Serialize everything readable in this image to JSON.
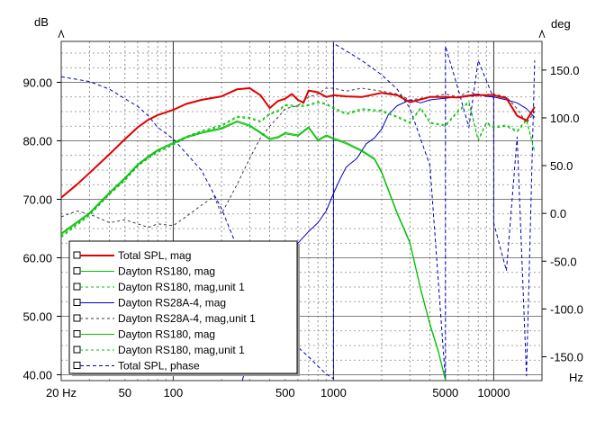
{
  "chart_data": {
    "type": "line",
    "x_scale": "log",
    "left_unit": "dB",
    "right_unit": "deg",
    "x_unit": "Hz",
    "xlim": [
      20,
      20000
    ],
    "ylim_left": [
      39,
      97
    ],
    "ylim_right": [
      -175,
      180
    ],
    "grid": true,
    "legend_position": "bottom-left",
    "x_tick_labels": [
      {
        "value": 20,
        "label": "20 Hz"
      },
      {
        "value": 50,
        "label": "50"
      },
      {
        "value": 100,
        "label": "100"
      },
      {
        "value": 500,
        "label": "500"
      },
      {
        "value": 1000,
        "label": "1000"
      },
      {
        "value": 5000,
        "label": "5000"
      },
      {
        "value": 10000,
        "label": "10000"
      }
    ],
    "y_left_ticks": [
      {
        "value": 40,
        "label": "40.00"
      },
      {
        "value": 50,
        "label": "50.00"
      },
      {
        "value": 60,
        "label": "60.00"
      },
      {
        "value": 70,
        "label": "70.00"
      },
      {
        "value": 80,
        "label": "80.00"
      },
      {
        "value": 90,
        "label": "90.00"
      }
    ],
    "y_right_ticks": [
      {
        "value": 150,
        "label": "150.0"
      },
      {
        "value": 100,
        "label": "100.0"
      },
      {
        "value": 50,
        "label": "50.0"
      },
      {
        "value": 0,
        "label": "0.0"
      },
      {
        "value": -50,
        "label": "-50.0"
      },
      {
        "value": -100,
        "label": "-100.0"
      },
      {
        "value": -150,
        "label": "-150.0"
      }
    ],
    "series": [
      {
        "name": "Total SPL, mag",
        "color": "#e00000",
        "dash": "solid",
        "width": 2,
        "axis": "left",
        "x": [
          20,
          25,
          30,
          40,
          50,
          60,
          70,
          80,
          100,
          120,
          150,
          200,
          250,
          300,
          350,
          400,
          450,
          500,
          550,
          600,
          650,
          700,
          800,
          900,
          1000,
          1200,
          1500,
          2000,
          2500,
          3000,
          4000,
          5000,
          6000,
          7000,
          8000,
          10000,
          12000,
          14000,
          16000,
          18000
        ],
        "y": [
          70.3,
          72.5,
          74.5,
          77.7,
          80.3,
          82.3,
          83.6,
          84.4,
          85.3,
          86.3,
          87.0,
          87.6,
          88.8,
          89.0,
          87.8,
          85.6,
          86.8,
          87.2,
          88.0,
          87.0,
          86.5,
          88.6,
          88.3,
          87.5,
          87.8,
          87.6,
          87.5,
          88.2,
          87.8,
          86.6,
          87.5,
          87.5,
          87.4,
          87.7,
          87.8,
          87.8,
          87.3,
          84.3,
          83.5,
          85.8
        ]
      },
      {
        "name": "Dayton RS180, mag",
        "color": "#00c000",
        "dash": "solid",
        "width": 1,
        "axis": "left",
        "x": [
          20,
          30,
          40,
          50,
          60,
          70,
          80,
          100,
          120,
          150,
          200,
          250,
          300,
          350,
          400,
          450,
          500,
          600,
          700,
          800,
          900,
          1000,
          1200,
          1500,
          1800,
          2000,
          2500,
          3000,
          3500,
          4000,
          4500,
          5000
        ],
        "y": [
          64.0,
          67.5,
          71.0,
          73.5,
          75.8,
          77.2,
          78.3,
          79.5,
          80.5,
          81.3,
          82.0,
          83.2,
          82.5,
          81.3,
          80.2,
          80.5,
          81.2,
          80.8,
          82.2,
          80.0,
          80.8,
          80.3,
          79.5,
          78.2,
          76.8,
          74.5,
          67.5,
          62.5,
          54.5,
          48.5,
          44.0,
          39.0
        ]
      },
      {
        "name": "Dayton RS180, mag,unit 1",
        "color": "#00c000",
        "dash": "3,3",
        "width": 1,
        "axis": "left",
        "x": [
          20,
          30,
          40,
          50,
          60,
          70,
          80,
          100,
          120,
          150,
          200,
          250,
          300,
          350,
          400,
          450,
          500,
          600,
          700,
          800,
          900,
          1000,
          1200,
          1500,
          2000,
          2500,
          3000,
          3500,
          4000,
          5000,
          6000,
          7000,
          8000,
          9000,
          10000,
          12000,
          14000,
          16000,
          18000
        ],
        "y": [
          63.5,
          67.2,
          70.8,
          73.2,
          75.6,
          77.0,
          78.0,
          79.3,
          80.5,
          81.5,
          82.5,
          84.0,
          83.8,
          83.2,
          84.5,
          85.0,
          86.0,
          85.8,
          86.0,
          86.5,
          86.2,
          85.5,
          84.5,
          85.3,
          85.0,
          84.0,
          83.0,
          85.5,
          83.0,
          82.5,
          85.0,
          86.5,
          80.0,
          83.0,
          82.2,
          82.5,
          81.5,
          83.5,
          78.0
        ]
      },
      {
        "name": "Dayton RS28A-4, mag",
        "color": "#0000c0",
        "dash": "solid",
        "width": 1,
        "axis": "left",
        "x": [
          270,
          300,
          350,
          400,
          450,
          500,
          550,
          600,
          700,
          800,
          900,
          1000,
          1100,
          1200,
          1400,
          1600,
          1800,
          2000,
          2200,
          2500,
          3000,
          3500,
          4000,
          5000,
          6000,
          7000,
          8000,
          9000,
          10000,
          12000,
          14000,
          16000,
          18000
        ],
        "y": [
          39.0,
          44.0,
          48.0,
          51.0,
          54.0,
          57.5,
          60.0,
          62.5,
          64.5,
          66.0,
          68.0,
          71.0,
          73.5,
          75.5,
          77.0,
          79.5,
          80.5,
          82.0,
          84.5,
          86.0,
          87.0,
          86.5,
          87.0,
          87.3,
          87.5,
          87.8,
          88.0,
          87.6,
          87.5,
          87.0,
          86.5,
          85.5,
          84.0
        ]
      },
      {
        "name": "Dayton RS28A-4, mag,unit 1",
        "color": "#3a3a3a",
        "dash": "3,3",
        "width": 1,
        "axis": "left",
        "x": [
          20,
          25,
          30,
          40,
          50,
          60,
          70,
          80,
          100,
          120,
          150,
          180,
          200,
          250,
          300,
          350,
          400,
          450,
          500,
          600,
          700,
          800,
          900,
          1000,
          1200,
          1500,
          2000,
          2500,
          3000,
          4000,
          5000,
          6000,
          7000,
          8000,
          10000,
          12000,
          14000,
          16000,
          18000
        ],
        "y": [
          67.0,
          68.0,
          67.5,
          66.0,
          66.5,
          65.8,
          65.2,
          65.8,
          65.5,
          67.0,
          69.0,
          70.5,
          67.5,
          72.5,
          77.0,
          80.5,
          82.5,
          84.0,
          85.5,
          86.0,
          87.5,
          88.0,
          89.0,
          89.0,
          88.5,
          89.0,
          88.5,
          88.0,
          87.0,
          87.5,
          88.0,
          87.5,
          88.5,
          87.8,
          88.0,
          87.5,
          85.5,
          83.0,
          85.0
        ]
      },
      {
        "name": "Dayton RS180, mag",
        "color": "#00c000",
        "dash": "solid",
        "width": 1,
        "axis": "left",
        "x": [
          20,
          30,
          40,
          50,
          60,
          70,
          80,
          100,
          120,
          150,
          200,
          250,
          300,
          350,
          400,
          450,
          500,
          600,
          700,
          800,
          900,
          1000,
          1200,
          1500,
          1800,
          2000,
          2500,
          3000,
          3500,
          4000,
          4500,
          5000
        ],
        "y": [
          64.2,
          67.7,
          71.2,
          73.7,
          76.0,
          77.4,
          78.5,
          79.7,
          80.7,
          81.5,
          82.2,
          83.4,
          82.7,
          81.5,
          80.4,
          80.7,
          81.4,
          81.0,
          82.4,
          80.2,
          81.0,
          80.5,
          79.7,
          78.4,
          77.0,
          74.7,
          67.7,
          62.7,
          54.7,
          48.7,
          44.2,
          39.2
        ]
      },
      {
        "name": "Dayton RS180, mag,unit 1",
        "color": "#00c000",
        "dash": "3,3",
        "width": 1,
        "axis": "left",
        "x": [
          20,
          30,
          40,
          50,
          60,
          70,
          80,
          100,
          120,
          150,
          200,
          250,
          300,
          350,
          400,
          450,
          500,
          600,
          700,
          800,
          900,
          1000,
          1200,
          1500,
          2000,
          2500,
          3000,
          3500,
          4000,
          5000,
          6000,
          7000,
          8000,
          9000,
          10000,
          12000,
          14000,
          16000,
          18000
        ],
        "y": [
          63.7,
          67.4,
          71.0,
          73.4,
          75.8,
          77.2,
          78.2,
          79.5,
          80.7,
          81.7,
          82.7,
          84.2,
          84.0,
          83.4,
          84.7,
          85.2,
          86.2,
          86.0,
          86.2,
          86.7,
          86.4,
          85.7,
          84.7,
          85.5,
          85.2,
          84.2,
          83.2,
          85.7,
          83.2,
          82.7,
          85.2,
          86.7,
          80.2,
          83.2,
          82.4,
          82.7,
          81.7,
          83.7,
          78.2
        ]
      },
      {
        "name": "Total SPL, phase",
        "color": "#0000c0",
        "dash": "4,3",
        "width": 1,
        "axis": "right",
        "x": [
          20,
          30,
          40,
          50,
          60,
          70,
          80,
          100,
          150,
          200,
          250,
          300,
          400,
          500,
          600,
          700,
          800,
          900,
          1000,
          1000.1,
          1200,
          1500,
          2000,
          2500,
          3000,
          4000,
          5000,
          5000.1,
          6000,
          7000,
          8000,
          10000,
          10000.1,
          12000,
          14000,
          16000,
          18000
        ],
        "y": [
          143,
          138,
          130,
          120,
          112,
          102,
          90,
          78,
          45,
          5,
          -35,
          -65,
          -105,
          -125,
          -140,
          -150,
          -160,
          -168,
          -173,
          178,
          170,
          160,
          145,
          130,
          110,
          50,
          -175,
          175,
          130,
          90,
          160,
          120,
          -10,
          -60,
          80,
          -170,
          160
        ]
      }
    ],
    "legend": [
      {
        "label": "Total SPL, mag",
        "color": "#e00000",
        "dash": "solid",
        "width": 2
      },
      {
        "label": "Dayton RS180, mag",
        "color": "#00c000",
        "dash": "solid",
        "width": 1
      },
      {
        "label": "Dayton RS180, mag,unit 1",
        "color": "#00c000",
        "dash": "3,3",
        "width": 1
      },
      {
        "label": "Dayton RS28A-4, mag",
        "color": "#0000c0",
        "dash": "solid",
        "width": 1
      },
      {
        "label": "Dayton RS28A-4, mag,unit 1",
        "color": "#3a3a3a",
        "dash": "3,3",
        "width": 1
      },
      {
        "label": "Dayton RS180, mag",
        "color": "#00c000",
        "dash": "solid",
        "width": 1
      },
      {
        "label": "Dayton RS180, mag,unit 1",
        "color": "#00c000",
        "dash": "3,3",
        "width": 1
      },
      {
        "label": "Total SPL, phase",
        "color": "#0000c0",
        "dash": "4,3",
        "width": 1
      }
    ]
  }
}
